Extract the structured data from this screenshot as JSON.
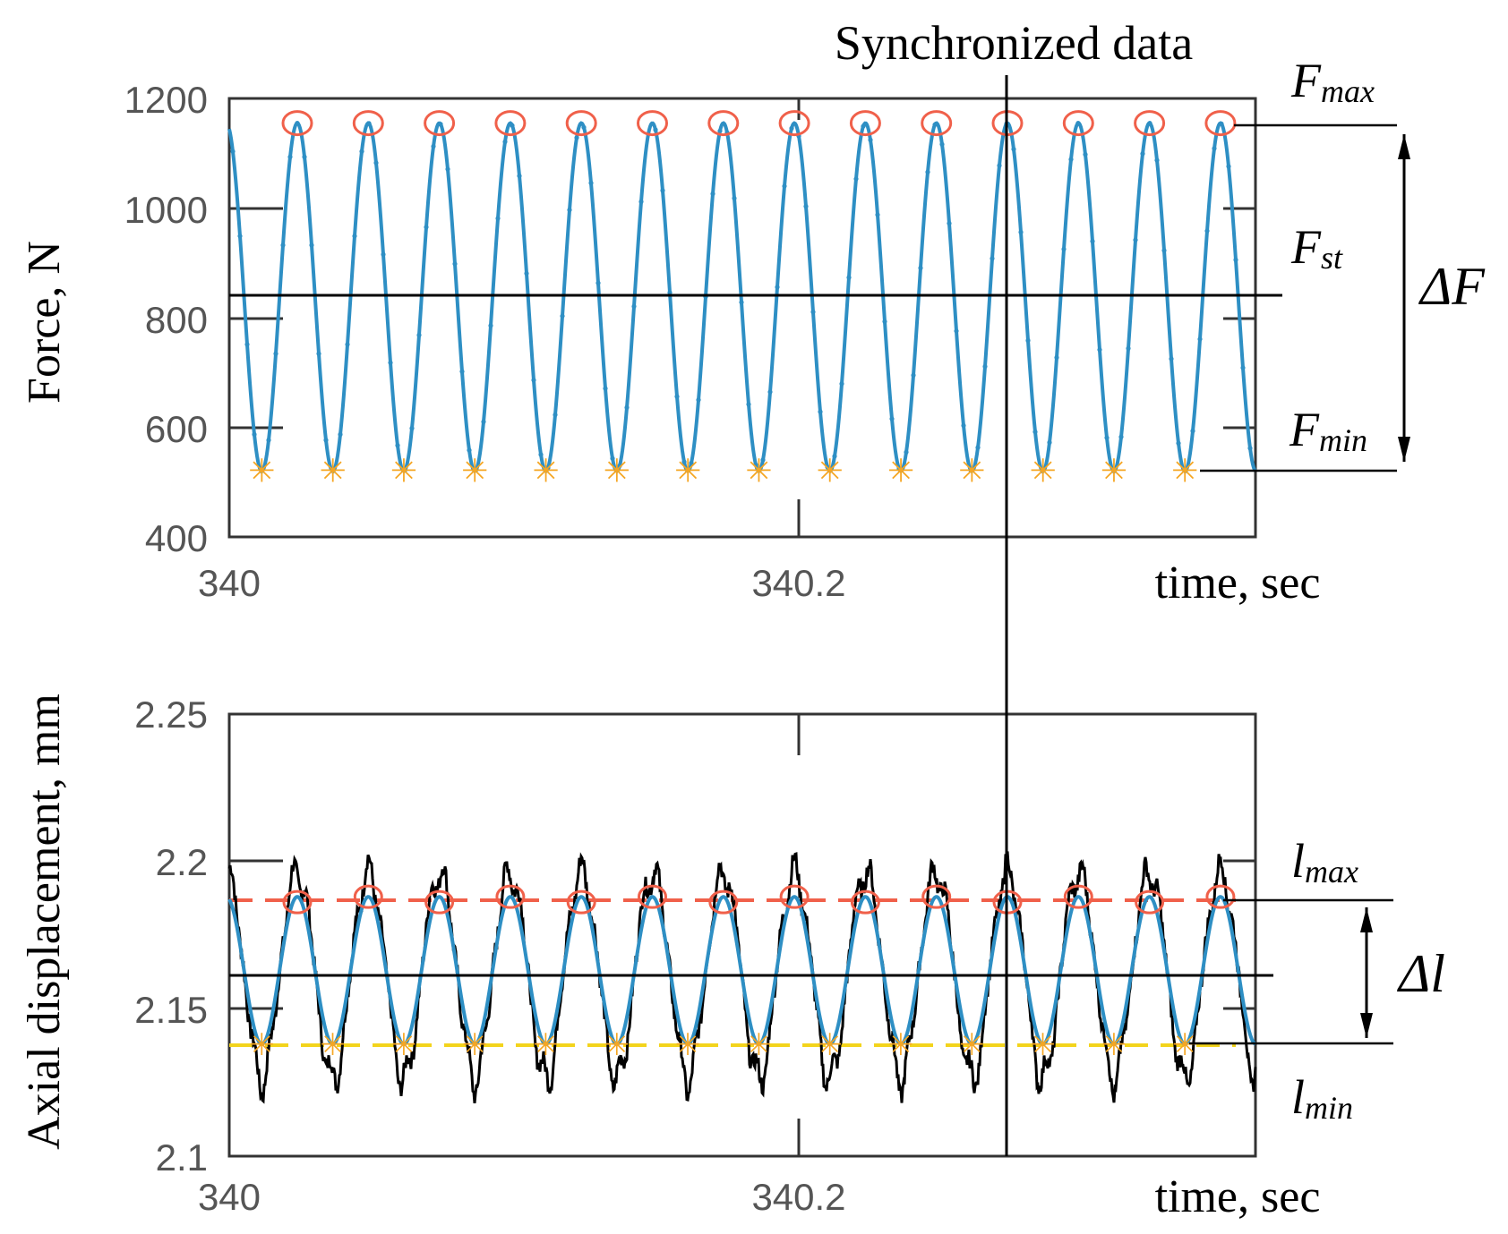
{
  "title": "Synchronized data",
  "colors": {
    "signal": "#2e8fc4",
    "noise": "#000000",
    "max_marker": "#f0604a",
    "min_marker_force": "#f5a623",
    "min_marker_disp": "#f3d41c",
    "axis_label": "#1f5e8c",
    "frame": "#333333"
  },
  "chart_data": [
    {
      "type": "line",
      "title": "",
      "xlabel": "time, sec",
      "ylabel": "Force, N",
      "xlim": [
        340,
        340.36
      ],
      "ylim": [
        400,
        1200
      ],
      "x_ticks": [
        "340",
        "340.2"
      ],
      "y_ticks": [
        "400",
        "600",
        "800",
        "1000",
        "1200"
      ],
      "series": [
        {
          "name": "force",
          "model": "sinusoid",
          "min": 520,
          "max": 1155,
          "mean": 845,
          "cycles_visible": 14,
          "max_peaks": [
            1155,
            1155,
            1155,
            1155,
            1155,
            1155,
            1155,
            1155,
            1155,
            1155,
            1155,
            1155,
            1155,
            1155
          ],
          "min_troughs": [
            520,
            520,
            520,
            520,
            520,
            520,
            520,
            520,
            520,
            520,
            520,
            520,
            520,
            520
          ]
        }
      ],
      "reference_lines": {
        "F_st": 845,
        "F_max": 1155,
        "F_min": 520
      },
      "annotations": {
        "F_max": {
          "base": "F",
          "sub": "max"
        },
        "F_st": {
          "base": "F",
          "sub": "st"
        },
        "F_min": {
          "base": "F",
          "sub": "min"
        },
        "delta": "ΔF"
      }
    },
    {
      "type": "line",
      "title": "",
      "xlabel": "time, sec",
      "ylabel": "Axial displacement, mm",
      "xlim": [
        340,
        340.36
      ],
      "ylim": [
        2.1,
        2.25
      ],
      "x_ticks": [
        "340",
        "340.2"
      ],
      "y_ticks": [
        "2.1",
        "2.15",
        "2.2",
        "2.25"
      ],
      "series": [
        {
          "name": "displacement (raw)",
          "model": "noisy sinusoid",
          "min": 2.122,
          "max": 2.2
        },
        {
          "name": "displacement (filtered)",
          "model": "sinusoid",
          "min": 2.138,
          "max": 2.188,
          "mean": 2.162,
          "cycles_visible": 14
        }
      ],
      "reference_lines": {
        "l_mean": 2.162,
        "l_max": 2.188,
        "l_min": 2.138
      },
      "annotations": {
        "l_max": {
          "base": "l",
          "sub": "max"
        },
        "l_min": {
          "base": "l",
          "sub": "min"
        },
        "delta": "Δl"
      }
    }
  ]
}
